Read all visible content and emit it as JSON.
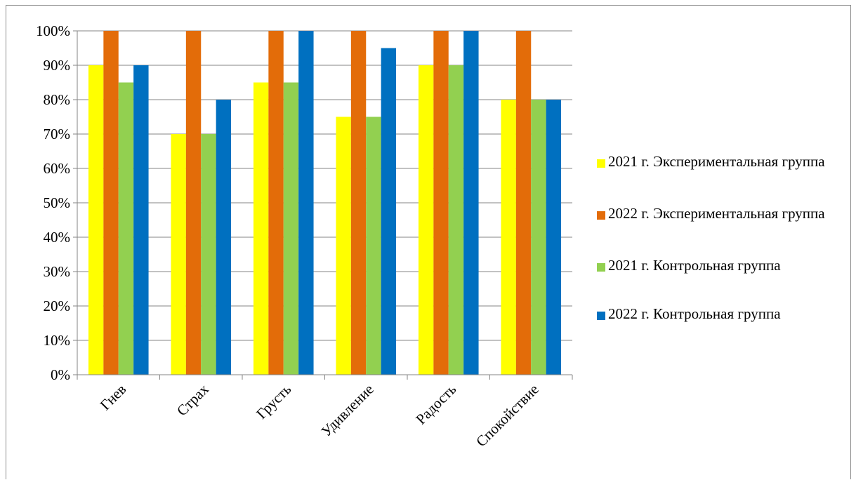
{
  "chart_data": {
    "type": "bar",
    "title": "",
    "xlabel": "",
    "ylabel": "",
    "categories": [
      "Гнев",
      "Страх",
      "Грусть",
      "Удивление",
      "Радость",
      "Спокойствие"
    ],
    "series": [
      {
        "name": "2021 г. Экспериментальная группа",
        "color": "#ffff00",
        "values": [
          90,
          70,
          85,
          75,
          90,
          80
        ]
      },
      {
        "name": "2022 г. Экспериментальная группа",
        "color": "#e36c09",
        "values": [
          100,
          100,
          100,
          100,
          100,
          100
        ]
      },
      {
        "name": "2021 г. Контрольная  группа",
        "color": "#92d050",
        "values": [
          85,
          70,
          85,
          75,
          90,
          80
        ]
      },
      {
        "name": "2022 г. Контрольная группа",
        "color": "#0070c0",
        "values": [
          90,
          80,
          100,
          95,
          100,
          80
        ]
      }
    ],
    "y_ticks": [
      "0%",
      "10%",
      "20%",
      "30%",
      "40%",
      "50%",
      "60%",
      "70%",
      "80%",
      "90%",
      "100%"
    ],
    "ylim": [
      0,
      100
    ],
    "grid": true,
    "legend_position": "right"
  }
}
